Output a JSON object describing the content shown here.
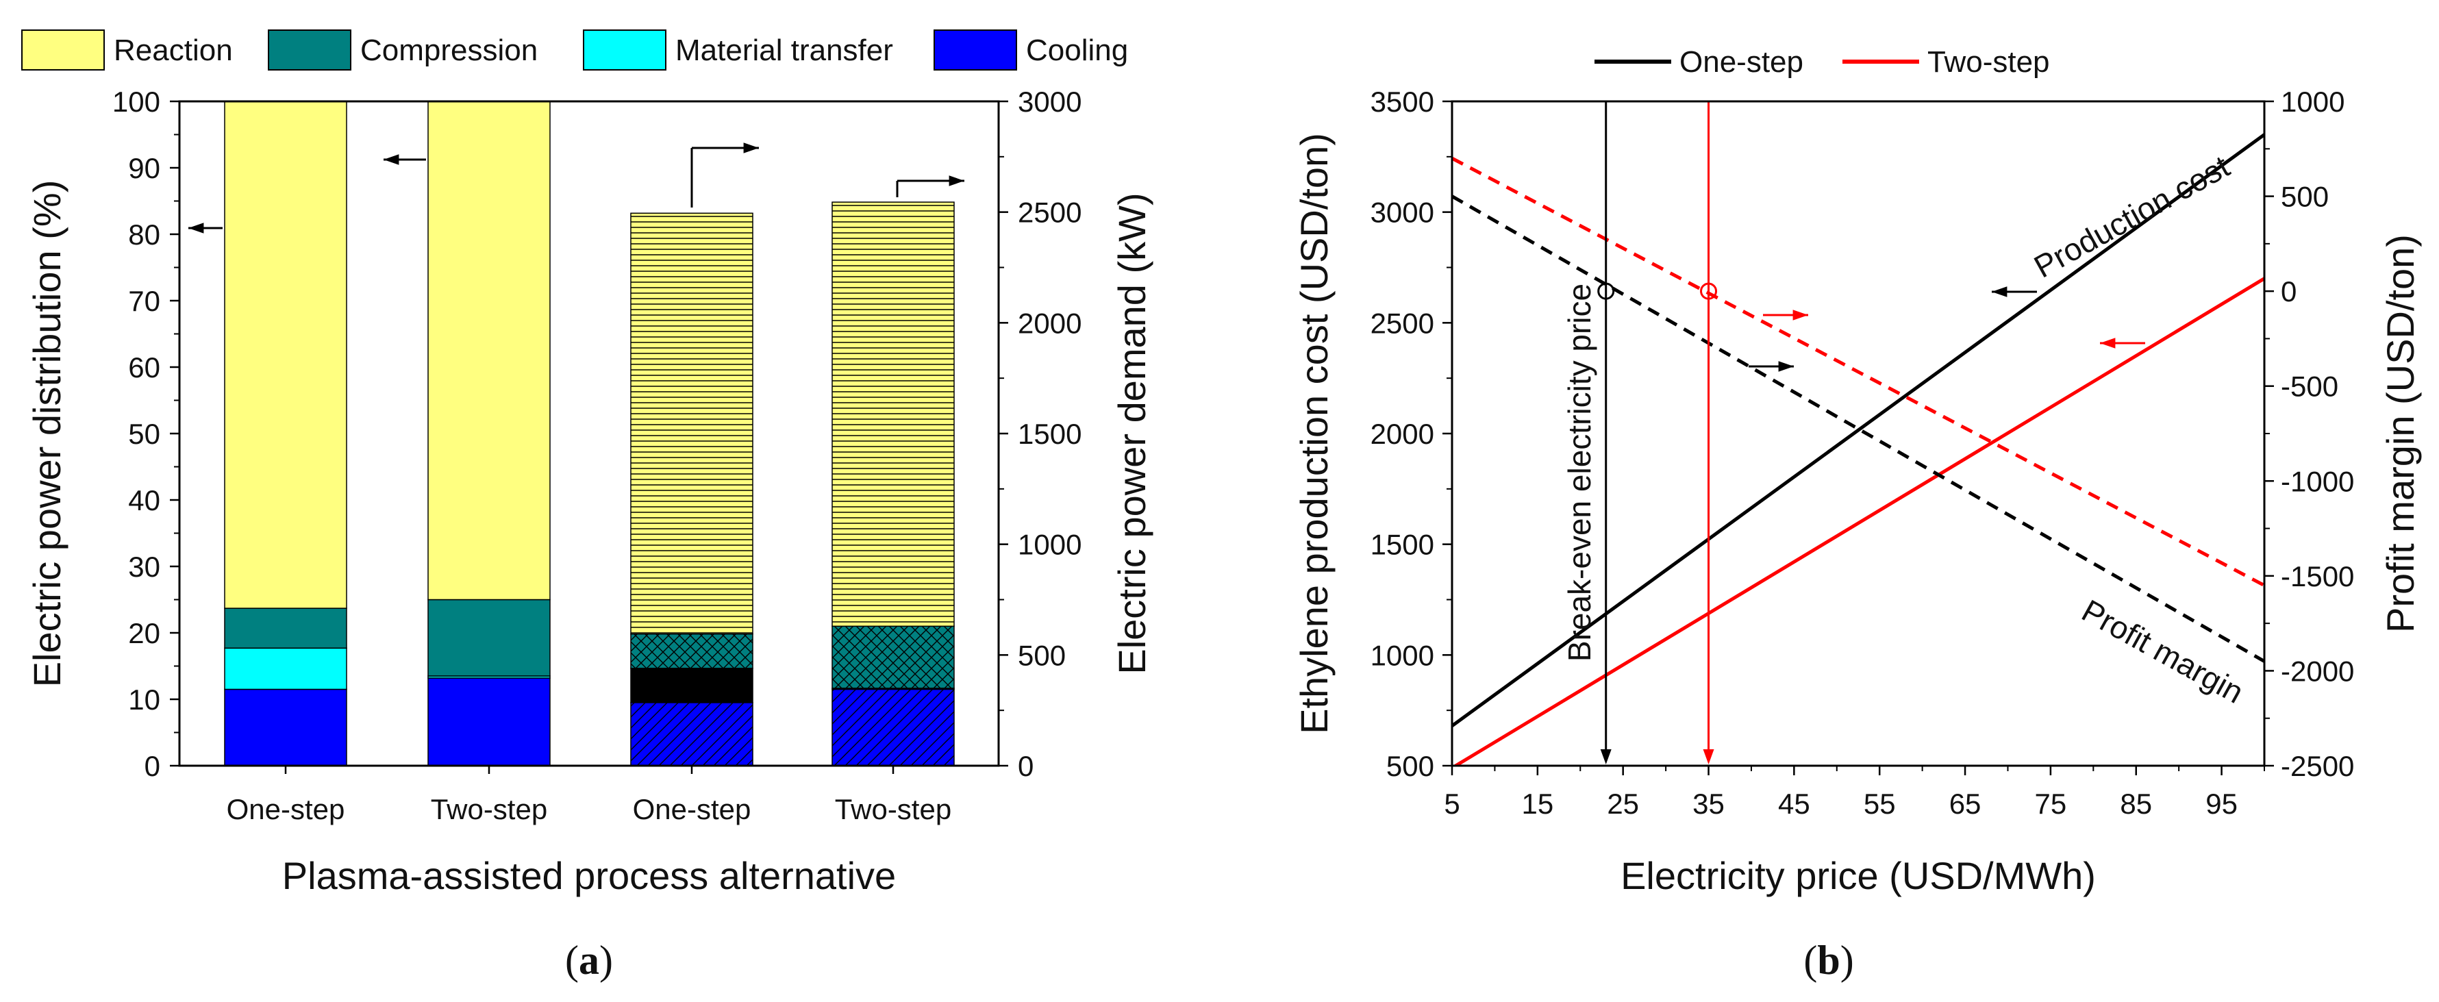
{
  "chart_data": [
    {
      "panel": "a",
      "type": "bar",
      "stacked": true,
      "panel_label_open": "(",
      "panel_label_letter": "a",
      "panel_label_close": ")",
      "xlabel": "Plasma-assisted process alternative",
      "ylabel_left": "Electric power distribution (%)",
      "ylabel_right": "Electric power demand (kW)",
      "ylim_left": [
        0,
        100
      ],
      "ylim_right": [
        0,
        3000
      ],
      "yticks_left": [
        0,
        10,
        20,
        30,
        40,
        50,
        60,
        70,
        80,
        90,
        100
      ],
      "yticks_right": [
        0,
        500,
        1000,
        1500,
        2000,
        2500,
        3000
      ],
      "legend_position": "top",
      "categories": [
        "One-step",
        "Two-step",
        "One-step",
        "Two-step"
      ],
      "axis_of_bar": [
        "left",
        "left",
        "right",
        "right"
      ],
      "series": [
        {
          "name": "Cooling",
          "color": "#0000ff",
          "values": [
            11.5,
            13.2,
            285,
            345
          ]
        },
        {
          "name": "Material transfer",
          "color": "#00ffff",
          "values": [
            6.2,
            0.3,
            155,
            5
          ]
        },
        {
          "name": "Compression",
          "color": "#008080",
          "values": [
            6.0,
            11.5,
            155,
            280
          ]
        },
        {
          "name": "Reaction",
          "color": "#ffff80",
          "values": [
            76.3,
            75.0,
            1900,
            1915
          ]
        }
      ],
      "legend_order": [
        "Reaction",
        "Compression",
        "Material transfer",
        "Cooling"
      ]
    },
    {
      "panel": "b",
      "type": "line",
      "panel_label_open": "(",
      "panel_label_letter": "b",
      "panel_label_close": ")",
      "xlabel": "Electricity price (USD/MWh)",
      "ylabel_left": "Ethylene production cost (USD/ton)",
      "ylabel_right": "Profit margin (USD/ton)",
      "xlim": [
        5,
        100
      ],
      "xticks": [
        5,
        15,
        25,
        35,
        45,
        55,
        65,
        75,
        85,
        95
      ],
      "ylim_left": [
        500,
        3500
      ],
      "yticks_left": [
        500,
        1000,
        1500,
        2000,
        2500,
        3000,
        3500
      ],
      "ylim_right": [
        -2500,
        1000
      ],
      "yticks_right": [
        -2500,
        -2000,
        -1500,
        -1000,
        -500,
        0,
        500,
        1000
      ],
      "legend_position": "top",
      "legend": [
        "One-step",
        "Two-step"
      ],
      "series": [
        {
          "name": "One-step",
          "metric": "Production cost",
          "axis": "left",
          "style": "solid",
          "color": "#000000",
          "x": [
            5,
            100
          ],
          "y": [
            680,
            3350
          ]
        },
        {
          "name": "Two-step",
          "metric": "Production cost",
          "axis": "left",
          "style": "solid",
          "color": "#ff0000",
          "x": [
            5,
            100
          ],
          "y": [
            490,
            2700
          ]
        },
        {
          "name": "One-step",
          "metric": "Profit margin",
          "axis": "right",
          "style": "dashed",
          "color": "#000000",
          "x": [
            5,
            100
          ],
          "y": [
            500,
            -1950
          ]
        },
        {
          "name": "Two-step",
          "metric": "Profit margin",
          "axis": "right",
          "style": "dashed",
          "color": "#ff0000",
          "x": [
            5,
            100
          ],
          "y": [
            700,
            -1550
          ]
        }
      ],
      "break_even": [
        {
          "name": "One-step",
          "x": 23,
          "y_right": 0
        },
        {
          "name": "Two-step",
          "x": 35,
          "y_right": 0
        }
      ],
      "annotations": {
        "production_cost": "Production cost",
        "profit_margin": "Profit margin",
        "break_even": "Break-even electricity price"
      }
    }
  ]
}
